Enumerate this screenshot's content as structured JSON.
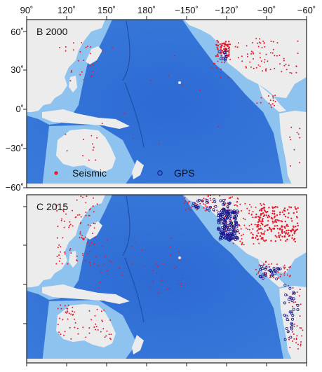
{
  "colors": {
    "ocean_deep": "#2f6fd6",
    "ocean_mid": "#4f8fe6",
    "shelf": "#a9d3f2",
    "land": "#ececec",
    "seismic": "#e8182a",
    "gps": "#1a1a8c",
    "frame": "#222222"
  },
  "axis": {
    "lon_ticks": [
      "90˚",
      "120˚",
      "150˚",
      "180˚",
      "−150˚",
      "−120˚",
      "−90˚",
      "−60˚"
    ],
    "lat_ticks": [
      "60˚",
      "30˚",
      "0˚",
      "−30˚",
      "−60˚"
    ]
  },
  "panels": [
    {
      "id": "B",
      "title": "B 2000",
      "legend": {
        "seismic_label": "Seismic",
        "gps_label": "GPS"
      },
      "seismic_density": "low",
      "gps_density": "very-low"
    },
    {
      "id": "C",
      "title": "C 2015",
      "seismic_density": "high",
      "gps_density": "high"
    }
  ],
  "icons": {
    "seismic": "filled-red-dot-icon",
    "gps": "open-blue-circle-icon"
  }
}
